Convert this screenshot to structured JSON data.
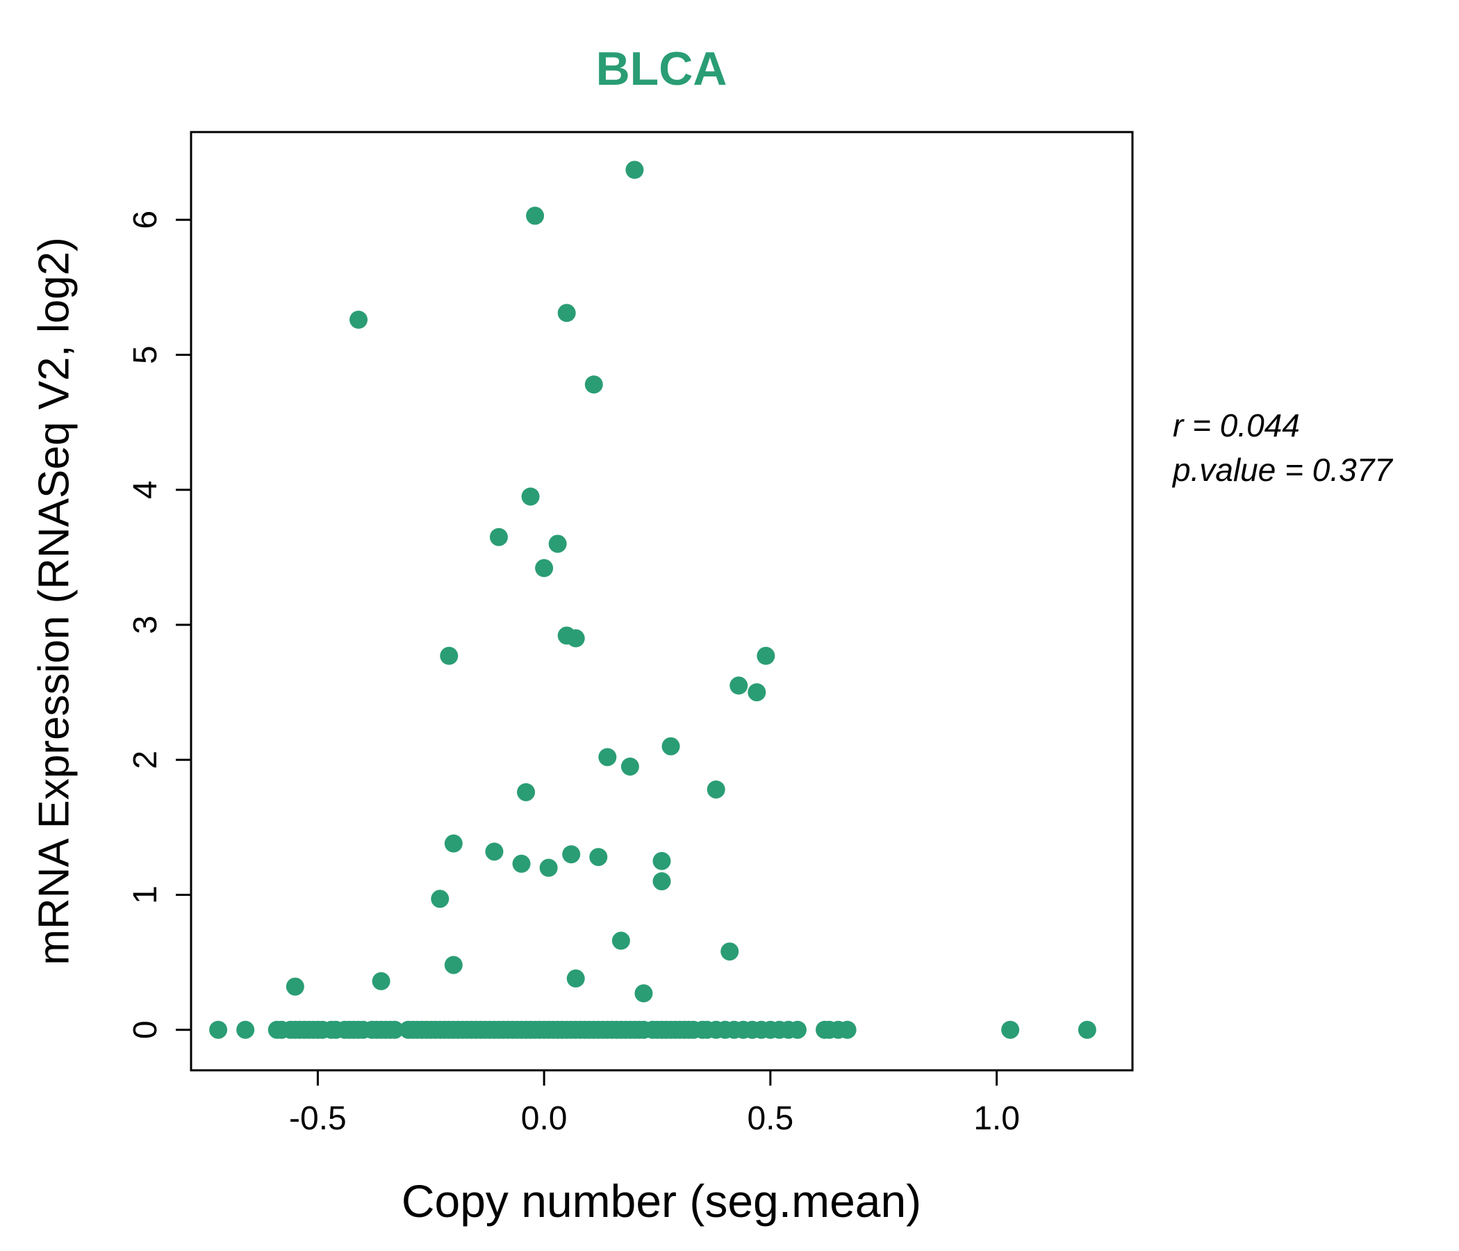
{
  "title": "BLCA",
  "colors": {
    "accent": "#2a9d74",
    "axis": "#000000"
  },
  "annotation": {
    "line1": "r = 0.044",
    "line2": "p.value = 0.377"
  },
  "chart_data": {
    "type": "scatter",
    "title": "BLCA",
    "xlabel": "Copy number (seg.mean)",
    "ylabel": "mRNA Expression (RNASeq V2, log2)",
    "xlim": [
      -0.78,
      1.3
    ],
    "ylim": [
      -0.3,
      6.65
    ],
    "grid": false,
    "legend": "none",
    "r": 0.044,
    "p_value": 0.377,
    "xticks": [
      {
        "value": -0.5,
        "label": "-0.5"
      },
      {
        "value": 0.0,
        "label": "0.0"
      },
      {
        "value": 0.5,
        "label": "0.5"
      },
      {
        "value": 1.0,
        "label": "1.0"
      }
    ],
    "yticks": [
      {
        "value": 0,
        "label": "0"
      },
      {
        "value": 1,
        "label": "1"
      },
      {
        "value": 2,
        "label": "2"
      },
      {
        "value": 3,
        "label": "3"
      },
      {
        "value": 4,
        "label": "4"
      },
      {
        "value": 5,
        "label": "5"
      },
      {
        "value": 6,
        "label": "6"
      }
    ],
    "points": [
      [
        0.2,
        6.37
      ],
      [
        -0.02,
        6.03
      ],
      [
        -0.41,
        5.26
      ],
      [
        0.05,
        5.31
      ],
      [
        0.11,
        4.78
      ],
      [
        -0.03,
        3.95
      ],
      [
        -0.1,
        3.65
      ],
      [
        0.03,
        3.6
      ],
      [
        0.0,
        3.42
      ],
      [
        0.05,
        2.92
      ],
      [
        0.07,
        2.9
      ],
      [
        -0.21,
        2.77
      ],
      [
        0.49,
        2.77
      ],
      [
        0.43,
        2.55
      ],
      [
        0.47,
        2.5
      ],
      [
        0.28,
        2.1
      ],
      [
        0.14,
        2.02
      ],
      [
        0.19,
        1.95
      ],
      [
        0.38,
        1.78
      ],
      [
        -0.04,
        1.76
      ],
      [
        -0.2,
        1.38
      ],
      [
        -0.11,
        1.32
      ],
      [
        0.06,
        1.3
      ],
      [
        0.12,
        1.28
      ],
      [
        0.26,
        1.25
      ],
      [
        -0.05,
        1.23
      ],
      [
        0.01,
        1.2
      ],
      [
        0.26,
        1.1
      ],
      [
        -0.23,
        0.97
      ],
      [
        0.17,
        0.66
      ],
      [
        0.41,
        0.58
      ],
      [
        -0.2,
        0.48
      ],
      [
        0.07,
        0.38
      ],
      [
        -0.36,
        0.36
      ],
      [
        -0.55,
        0.32
      ],
      [
        0.22,
        0.27
      ]
    ],
    "zero_band_x": [
      -0.72,
      -0.66,
      -0.59,
      -0.58,
      -0.56,
      -0.55,
      -0.54,
      -0.53,
      -0.52,
      -0.51,
      -0.5,
      -0.49,
      -0.47,
      -0.46,
      -0.44,
      -0.43,
      -0.42,
      -0.41,
      -0.4,
      -0.38,
      -0.37,
      -0.36,
      -0.35,
      -0.34,
      -0.33,
      -0.3,
      -0.29,
      -0.28,
      -0.27,
      -0.26,
      -0.25,
      -0.24,
      -0.23,
      -0.22,
      -0.21,
      -0.2,
      -0.19,
      -0.18,
      -0.17,
      -0.16,
      -0.15,
      -0.14,
      -0.13,
      -0.12,
      -0.11,
      -0.1,
      -0.09,
      -0.08,
      -0.07,
      -0.06,
      -0.05,
      -0.04,
      -0.03,
      -0.02,
      -0.01,
      0.0,
      0.01,
      0.02,
      0.03,
      0.04,
      0.05,
      0.06,
      0.07,
      0.08,
      0.09,
      0.1,
      0.11,
      0.12,
      0.13,
      0.14,
      0.15,
      0.16,
      0.17,
      0.18,
      0.19,
      0.2,
      0.21,
      0.22,
      0.24,
      0.25,
      0.26,
      0.27,
      0.28,
      0.29,
      0.3,
      0.31,
      0.32,
      0.33,
      0.35,
      0.36,
      0.38,
      0.4,
      0.42,
      0.44,
      0.46,
      0.48,
      0.5,
      0.52,
      0.54,
      0.56,
      0.62,
      0.63,
      0.65,
      0.67,
      1.03,
      1.2
    ]
  }
}
